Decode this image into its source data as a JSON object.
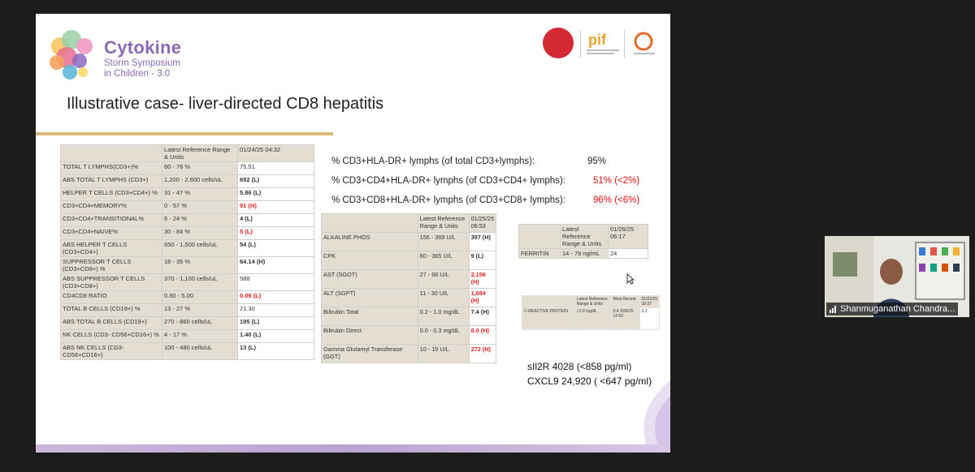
{
  "slide": {
    "logo": {
      "title": "Cytokine",
      "sub1": "Storm Symposium",
      "sub2": "in Children - 3.0"
    },
    "title": "Illustrative case- liver-directed CD8 hepatitis",
    "table1": {
      "headers": [
        "",
        "Latest Reference Range & Units",
        "01/24/25 04:32"
      ],
      "rows": [
        [
          "TOTAL T LYMPHS(CD3+)%",
          "60 - 76 %",
          "75.51",
          "normal"
        ],
        [
          "ABS TOTAL T LYMPHS (CD3+)",
          "1,200 - 2,600 cells/uL",
          "692 (L)",
          "bold"
        ],
        [
          "HELPER T CELLS (CD3+CD4+) %",
          "31 - 47 %",
          "5.86 (L)",
          "bold"
        ],
        [
          "CD3+CD4+MEMORY%",
          "0 - 57 %",
          "91 (H)",
          "red"
        ],
        [
          "CD3+CD4+TRANSITIONAL%",
          "6 - 24 %",
          "4 (L)",
          "bold"
        ],
        [
          "CD3+CD4+NAIVE%",
          "30 - 84 %",
          "5 (L)",
          "red"
        ],
        [
          "ABS HELPER T CELLS (CD3+CD4+)",
          "650 - 1,500 cells/uL",
          "54 (L)",
          "bold"
        ],
        [
          "SUPPRESSOR T CELLS (CD3+CD8+) %",
          "18 - 35 %",
          "64.14 (H)",
          "bold"
        ],
        [
          "ABS SUPPRESSOR T CELLS (CD3+CD8+)",
          "370 - 1,100 cells/uL",
          "588",
          "normal"
        ],
        [
          "CD4CD8 RATIO",
          "0.80 - 5.00",
          "0.09 (L)",
          "red"
        ],
        [
          "TOTAL B CELLS (CD19+) %",
          "13 - 27 %",
          "21.30",
          "normal"
        ],
        [
          "ABS TOTAL B CELLS (CD19+)",
          "270 - 860 cells/uL",
          "195 (L)",
          "bold"
        ],
        [
          "NK CELLS (CD3- CD56+CD16+) %",
          "4 - 17 %",
          "1.40 (L)",
          "bold"
        ],
        [
          "ABS NK CELLS (CD3- CD56+CD16+)",
          "100 - 480 cells/uL",
          "13 (L)",
          "bold"
        ]
      ]
    },
    "flow": [
      {
        "label": "% CD3+HLA-DR+ lymphs (of total CD3+lymphs):",
        "value": "95%",
        "red": false
      },
      {
        "label": "% CD3+CD4+HLA-DR+ lymphs (of CD3+CD4+ lymphs):",
        "value": "51% (<2%)",
        "red": true
      },
      {
        "label": "% CD3+CD8+HLA-DR+ lymphs (of CD3+CD8+ lymphs):",
        "value": "96% (<6%)",
        "red": true
      }
    ],
    "table2": {
      "headers": [
        "",
        "Latest Reference Range & Units",
        "01/25/25 06:53"
      ],
      "rows": [
        [
          "ALKALINE PHOS",
          "156 - 369 U/L",
          "397 (H)",
          "bold"
        ],
        [
          "CPK",
          "60 - 365 U/L",
          "9 (L)",
          "bold"
        ],
        [
          "AST (SGOT)",
          "27 - 66 U/L",
          "2,156 (H)",
          "red"
        ],
        [
          "ALT (SGPT)",
          "11 - 30 U/L",
          "1,684 (H)",
          "red"
        ],
        [
          "Bilirubin Total",
          "0.2 - 1.0 mg/dL",
          "7.4 (H)",
          "bold"
        ],
        [
          "Bilirubin Direct",
          "0.0 - 0.3 mg/dL",
          "6.0 (H)",
          "red"
        ],
        [
          "Gamma Glutamyl Transferase (GGT)",
          "10 - 15 U/L",
          "272 (H)",
          "red"
        ]
      ]
    },
    "table3": {
      "headers": [
        "",
        "Latest Reference Range & Units",
        "01/26/25 06:17"
      ],
      "rows": [
        [
          "FERRITIN",
          "14 - 79 ng/mL",
          "24"
        ]
      ]
    },
    "table4": {
      "headers": [
        "",
        "Latest Reference Range & Units",
        "Most Recent",
        "01/22/25 10:27"
      ],
      "rows": [
        [
          "C-REACTIVE PROTEIN",
          "<1.0 mg/dL",
          "0.4 3/26/25 12:50",
          "0.2"
        ]
      ]
    },
    "markers": [
      "sIl2R 4028 (<858 pg/ml)",
      "CXCL9 24,920 ( <647 pg/ml)"
    ]
  },
  "video": {
    "participant_name": "Shanmuganathan Chandra..."
  },
  "icons": {
    "signal": "signal-bars-icon",
    "cursor": "mouse-cursor-icon"
  }
}
